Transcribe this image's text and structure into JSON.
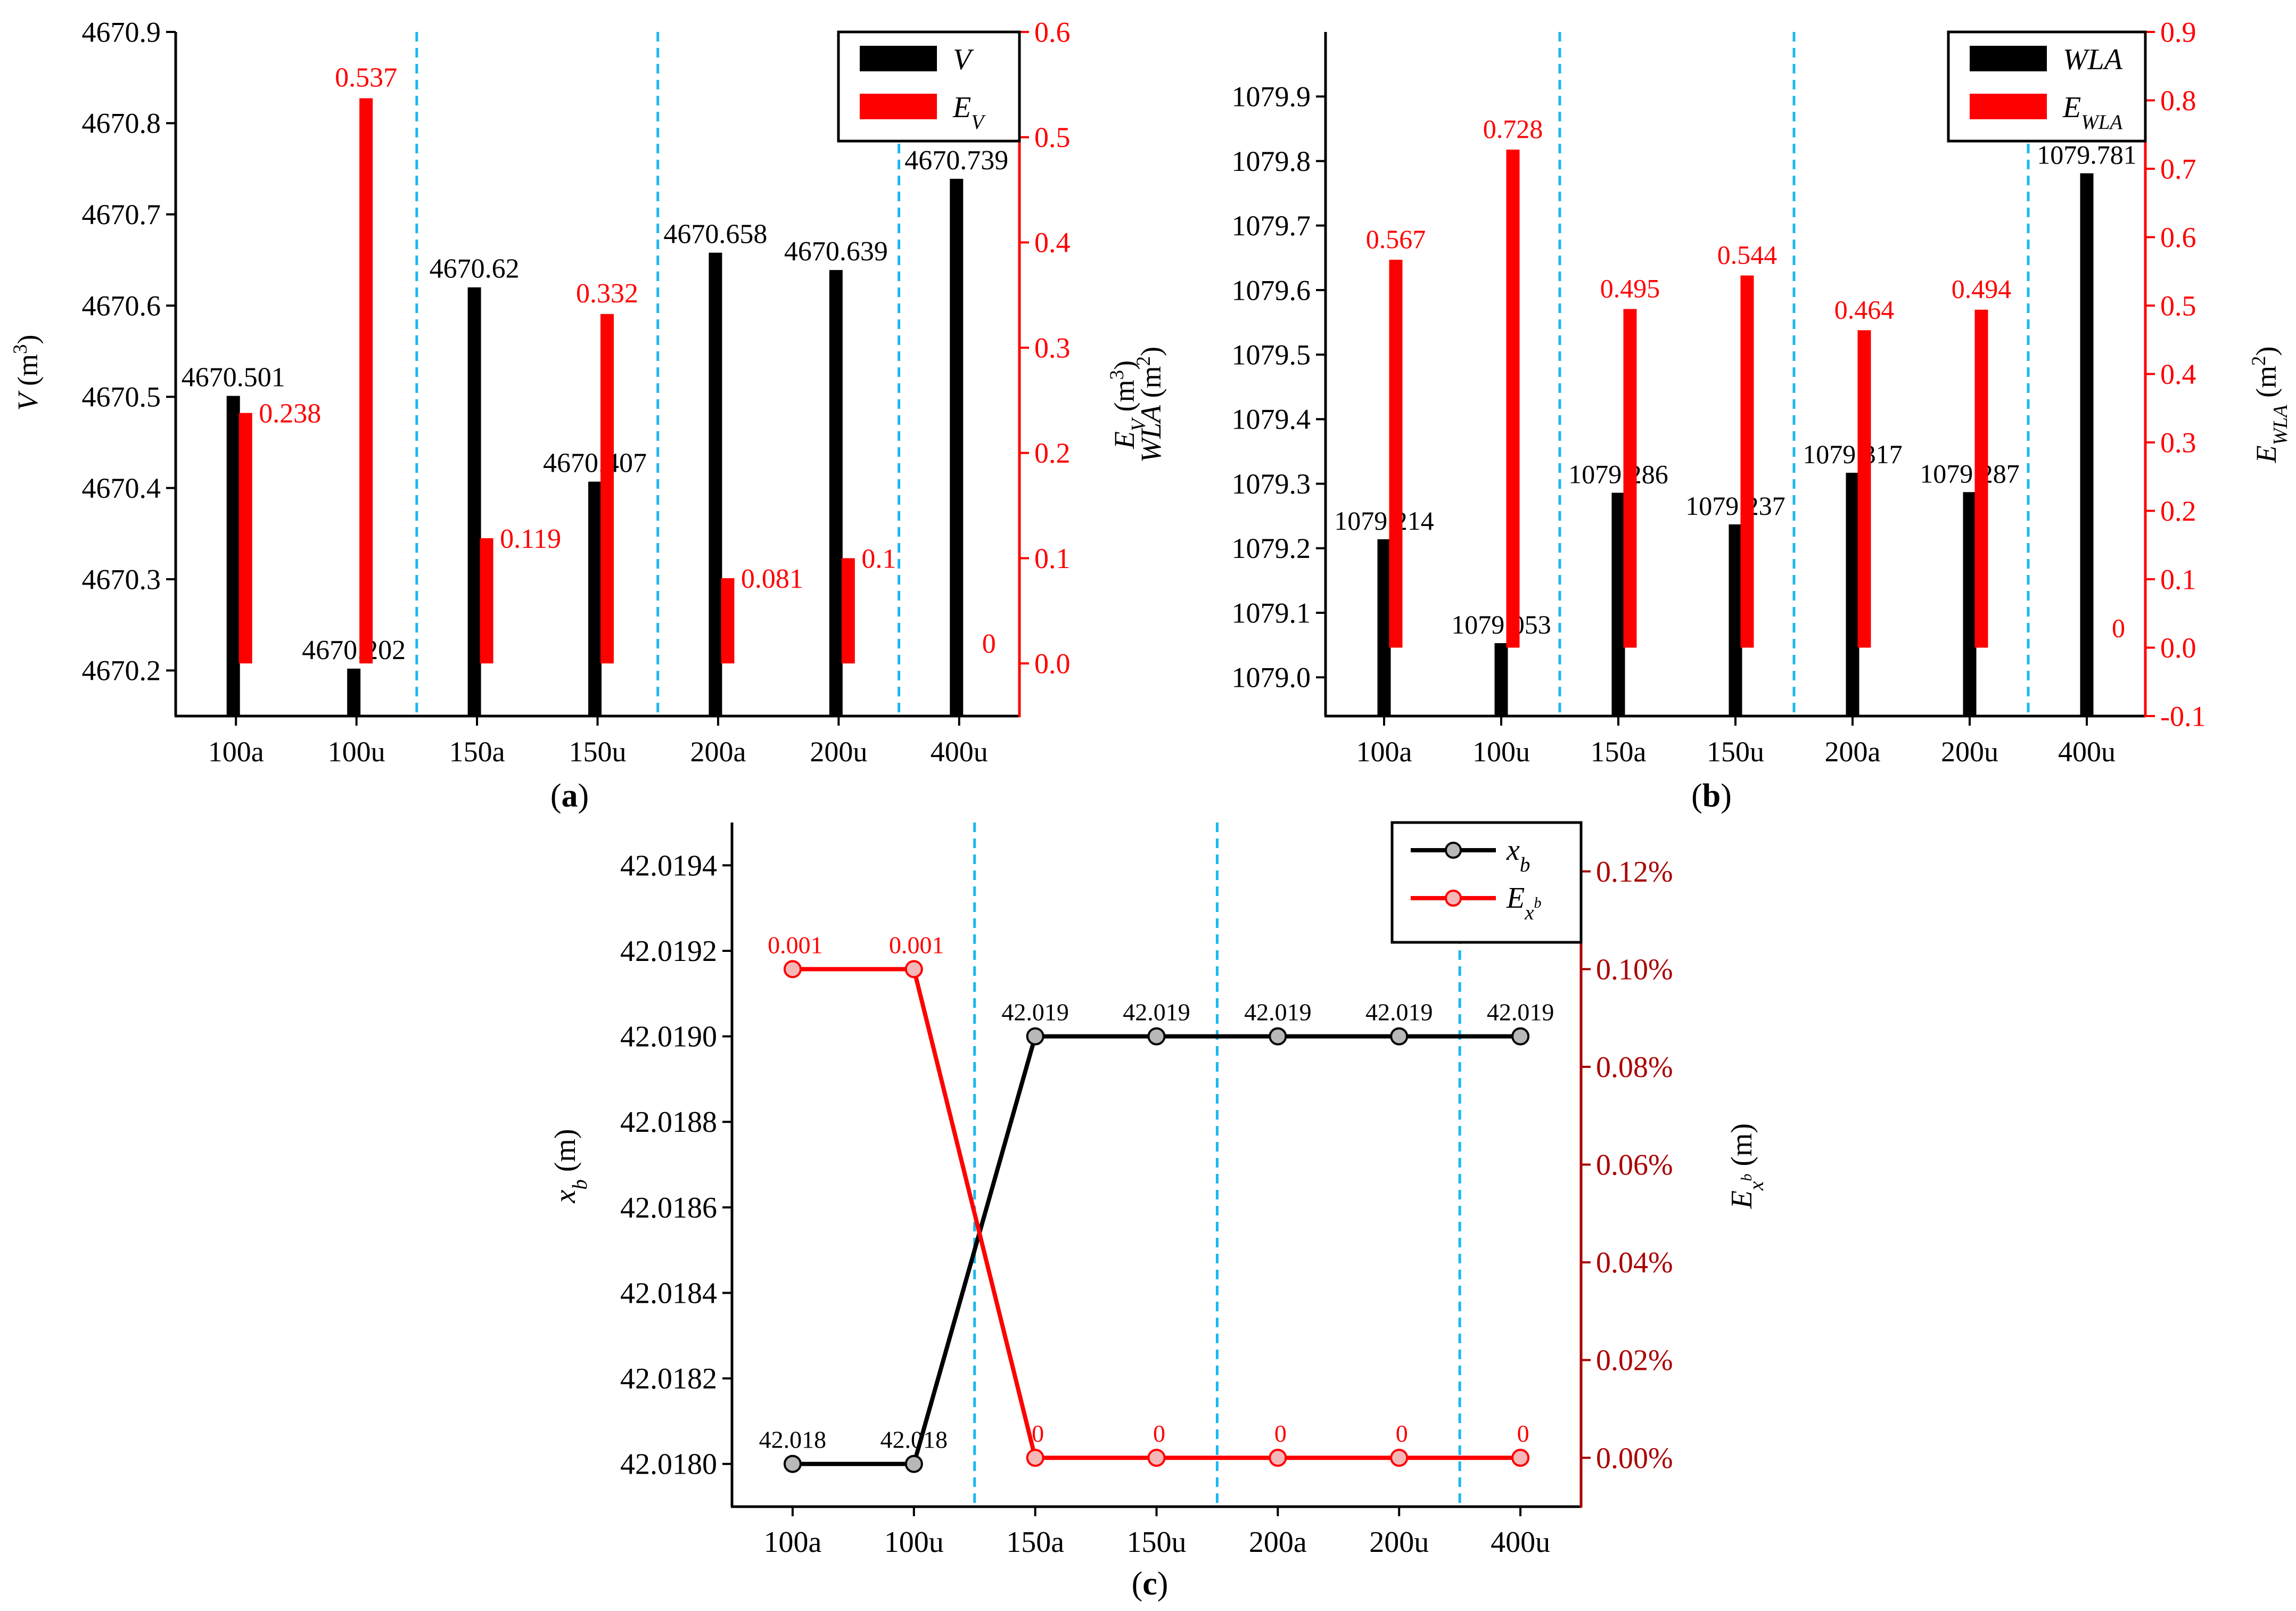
{
  "figure": {
    "panels": [
      "a",
      "b",
      "c"
    ]
  },
  "chart_data": [
    {
      "id": "a",
      "type": "bar",
      "caption": "(a)",
      "categories": [
        "100a",
        "100u",
        "150a",
        "150u",
        "200a",
        "200u",
        "400u"
      ],
      "series": [
        {
          "name": "V",
          "axis": "left",
          "color": "#000000",
          "values": [
            4670.501,
            4670.202,
            4670.62,
            4670.407,
            4670.658,
            4670.639,
            4670.739
          ],
          "labels": [
            "4670.501",
            "4670.202",
            "4670.62",
            "4670.407",
            "4670.658",
            "4670.639",
            "4670.739"
          ]
        },
        {
          "name": "E_V",
          "axis": "right",
          "color": "#ff0000",
          "values": [
            0.238,
            0.537,
            0.119,
            0.332,
            0.081,
            0.1,
            0
          ],
          "labels": [
            "0.238",
            "0.537",
            "0.119",
            "0.332",
            "0.081",
            "0.1",
            "0"
          ]
        }
      ],
      "y_left": {
        "label": "V (m3)",
        "min": 4670.15,
        "max": 4670.9,
        "ticks": [
          4670.2,
          4670.3,
          4670.4,
          4670.5,
          4670.6,
          4670.7,
          4670.8,
          4670.9
        ]
      },
      "y_right": {
        "label": "E_V (m3)",
        "min": -0.05,
        "max": 0.6,
        "ticks": [
          0.0,
          0.1,
          0.2,
          0.3,
          0.4,
          0.5,
          0.6
        ]
      },
      "separators_after": [
        1,
        3,
        5
      ],
      "legend": {
        "position": "top-right",
        "entries": [
          "V",
          "E_V"
        ]
      }
    },
    {
      "id": "b",
      "type": "bar",
      "caption": "(b)",
      "categories": [
        "100a",
        "100u",
        "150a",
        "150u",
        "200a",
        "200u",
        "400u"
      ],
      "series": [
        {
          "name": "WLA",
          "axis": "left",
          "color": "#000000",
          "values": [
            1079.214,
            1079.053,
            1079.286,
            1079.237,
            1079.317,
            1079.287,
            1079.781
          ],
          "labels": [
            "1079.214",
            "1079.053",
            "1079.286",
            "1079.237",
            "1079.317",
            "1079.287",
            "1079.781"
          ]
        },
        {
          "name": "E_WLA",
          "axis": "right",
          "color": "#ff0000",
          "values": [
            0.567,
            0.728,
            0.495,
            0.544,
            0.464,
            0.494,
            0
          ],
          "labels": [
            "0.567",
            "0.728",
            "0.495",
            "0.544",
            "0.464",
            "0.494",
            "0"
          ]
        }
      ],
      "y_left": {
        "label": "WLA (m2)",
        "min": 1078.94,
        "max": 1080.0,
        "ticks": [
          1079.0,
          1079.1,
          1079.2,
          1079.3,
          1079.4,
          1079.5,
          1079.6,
          1079.7,
          1079.8,
          1079.9
        ]
      },
      "y_right": {
        "label": "E_WLA (m2)",
        "min": -0.1,
        "max": 0.9,
        "ticks": [
          -0.1,
          0.0,
          0.1,
          0.2,
          0.3,
          0.4,
          0.5,
          0.6,
          0.7,
          0.8,
          0.9
        ]
      },
      "separators_after": [
        1,
        3,
        5
      ],
      "legend": {
        "position": "top-right",
        "entries": [
          "WLA",
          "E_WLA"
        ]
      }
    },
    {
      "id": "c",
      "type": "line",
      "caption": "(c)",
      "categories": [
        "100a",
        "100u",
        "150a",
        "150u",
        "200a",
        "200u",
        "400u"
      ],
      "series": [
        {
          "name": "x_b",
          "axis": "left",
          "color": "#000000",
          "values": [
            42.018,
            42.018,
            42.019,
            42.019,
            42.019,
            42.019,
            42.019
          ],
          "labels": [
            "42.018",
            "42.018",
            "42.019",
            "42.019",
            "42.019",
            "42.019",
            "42.019"
          ]
        },
        {
          "name": "E_x_b",
          "axis": "right",
          "color": "#ff0000",
          "values": [
            0.001,
            0.001,
            0,
            0,
            0,
            0,
            0
          ],
          "labels": [
            "0.001",
            "0.001",
            "0",
            "0",
            "0",
            "0",
            "0"
          ]
        }
      ],
      "y_left": {
        "label": "x_b (m)",
        "min": 42.0179,
        "max": 42.0195,
        "ticks": [
          42.018,
          42.0182,
          42.0184,
          42.0186,
          42.0188,
          42.019,
          42.0192,
          42.0194
        ],
        "tick_labels": [
          "42.0180",
          "42.0182",
          "42.0184",
          "42.0186",
          "42.0188",
          "42.0190",
          "42.0192",
          "42.0194"
        ]
      },
      "y_right": {
        "label": "E_x_b (m)",
        "min": -0.0001,
        "max": 0.0013,
        "ticks": [
          0,
          0.0002,
          0.0004,
          0.0006,
          0.0008,
          0.001,
          0.0012
        ],
        "tick_labels": [
          "0.00%",
          "0.02%",
          "0.04%",
          "0.06%",
          "0.08%",
          "0.10%",
          "0.12%"
        ]
      },
      "separators_after": [
        1,
        3,
        5
      ],
      "legend": {
        "position": "top-right",
        "entries": [
          "x_b",
          "E_x_b"
        ]
      }
    }
  ]
}
